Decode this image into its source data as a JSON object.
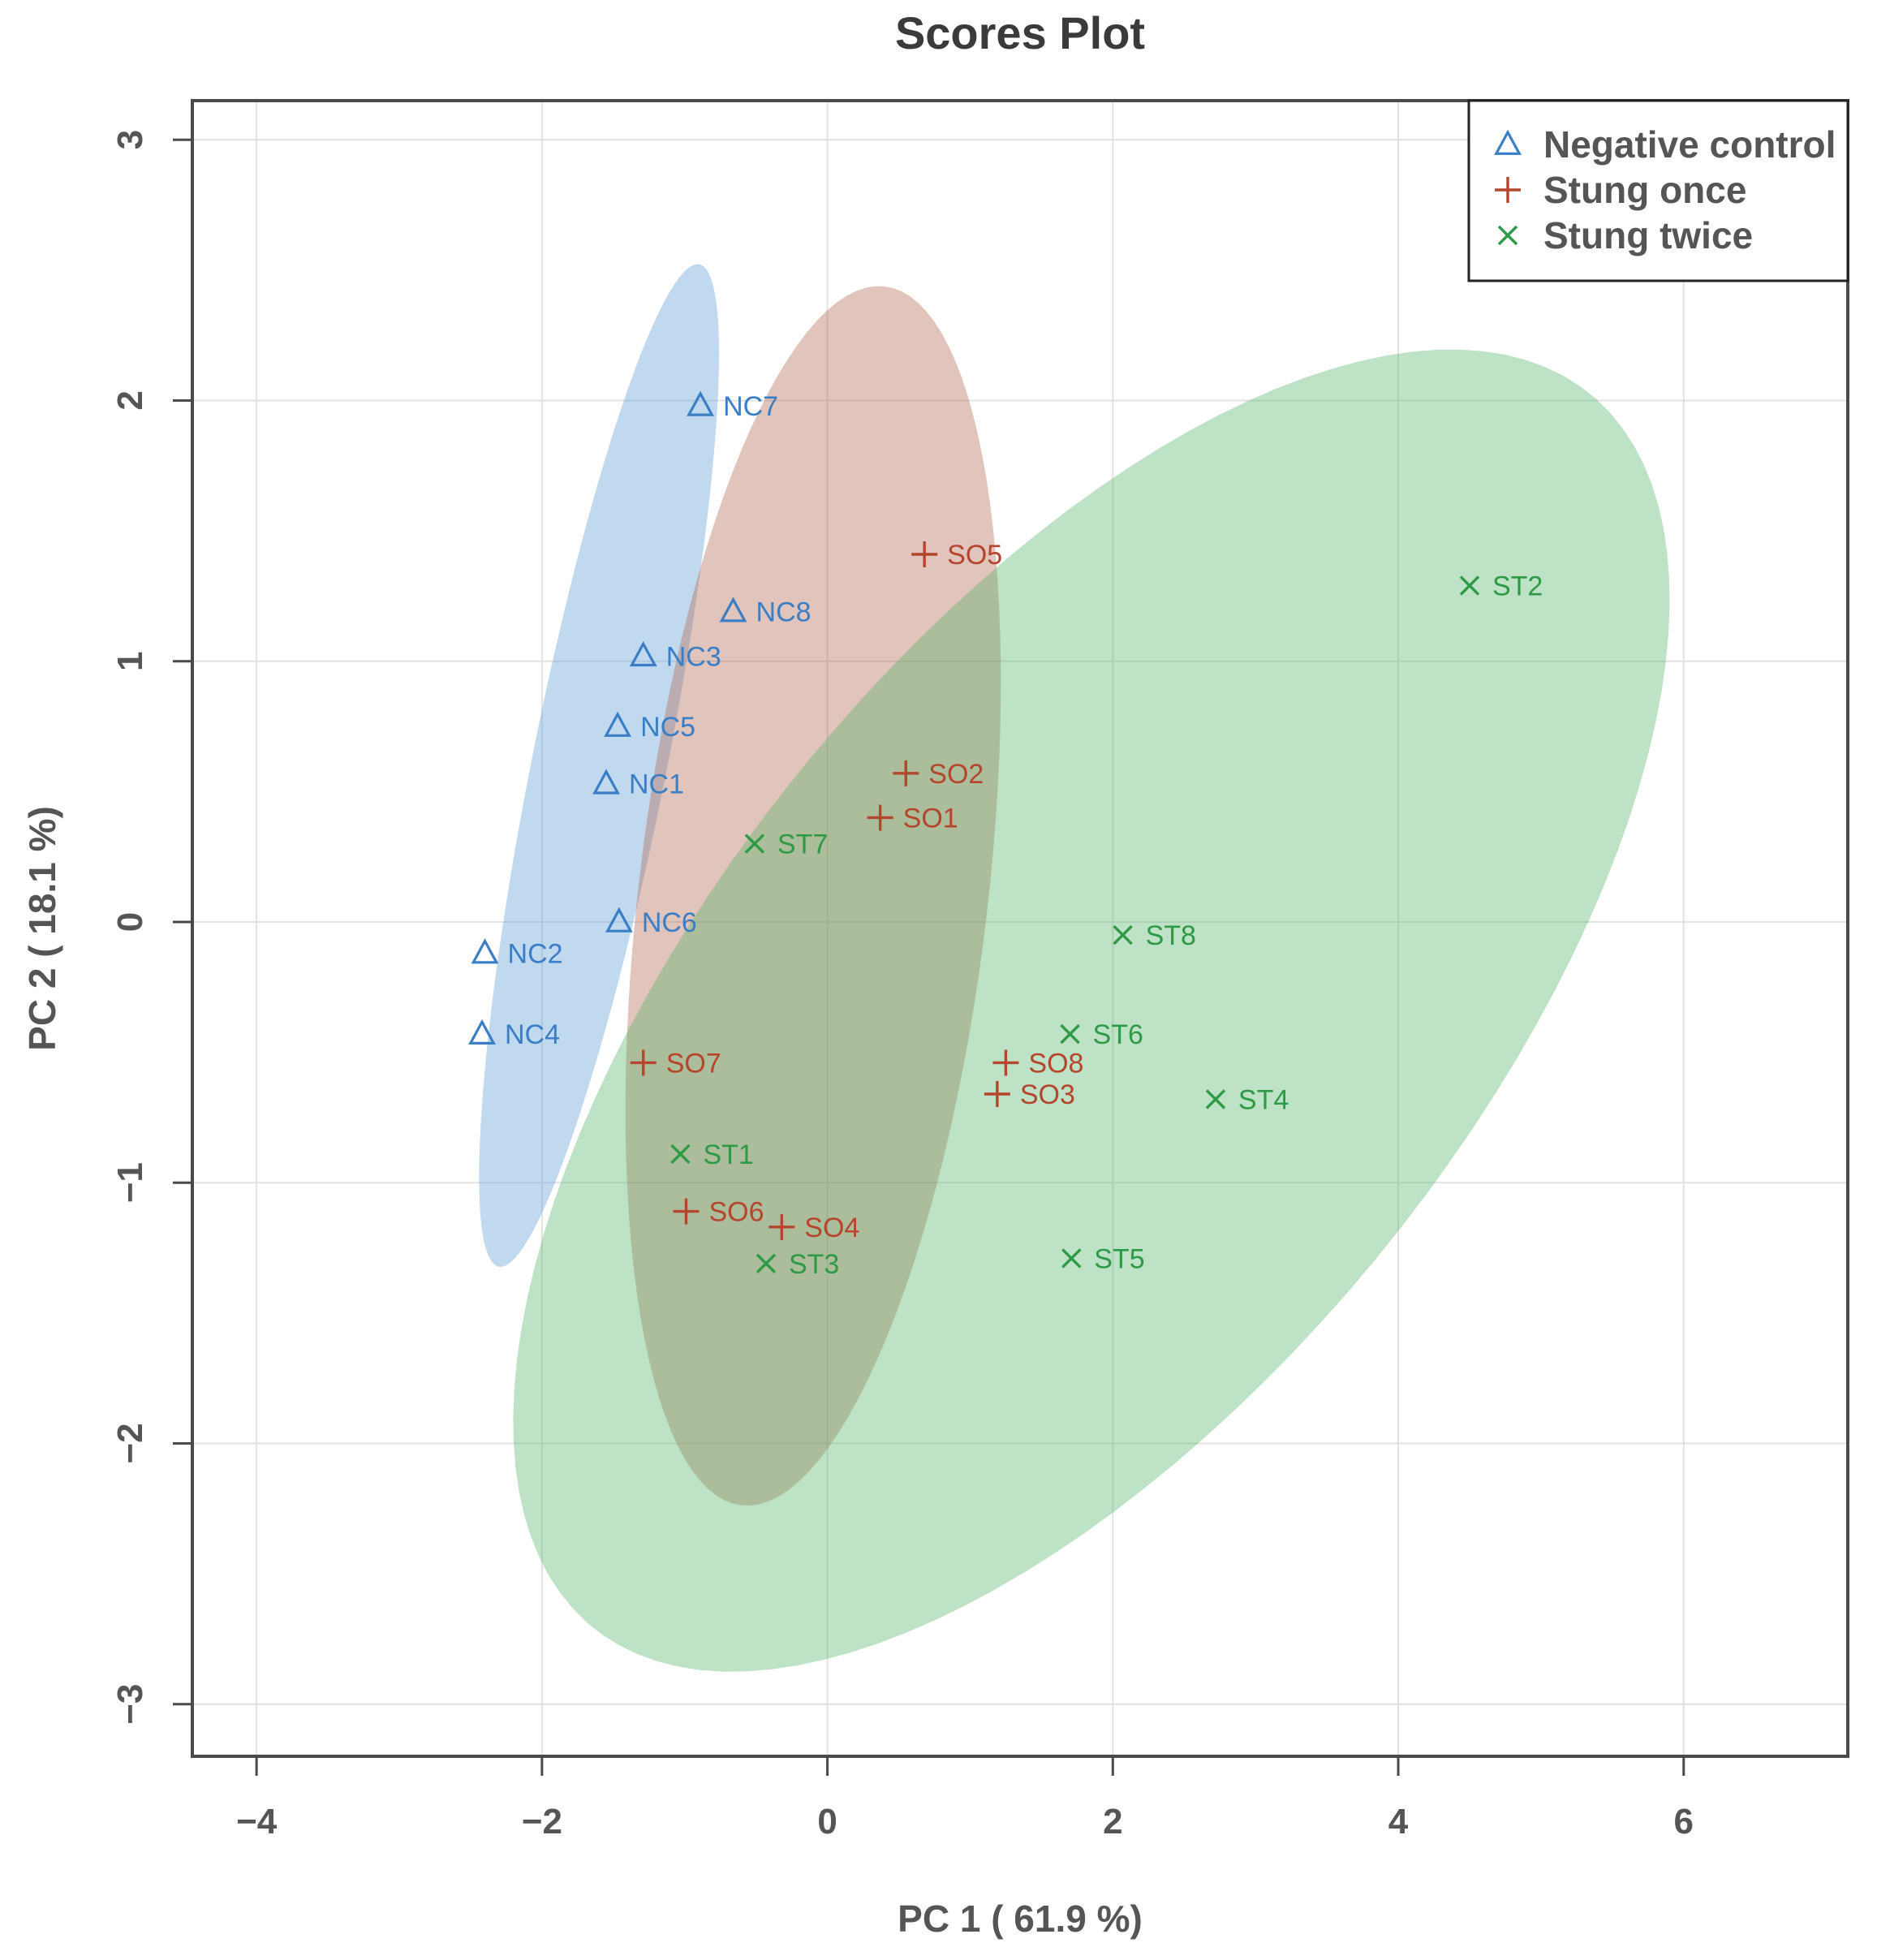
{
  "chart_data": {
    "type": "scatter",
    "title": "Scores Plot",
    "xlabel": "PC 1 ( 61.9 %)",
    "ylabel": "PC 2 ( 18.1 %)",
    "xlim": [
      -4.45,
      7.15
    ],
    "ylim": [
      -3.2,
      3.15
    ],
    "xticks": [
      -4,
      -2,
      0,
      2,
      4,
      6
    ],
    "yticks": [
      -3,
      -2,
      -1,
      0,
      1,
      2,
      3
    ],
    "xtick_labels": [
      "−4",
      "−2",
      "0",
      "2",
      "4",
      "6"
    ],
    "ytick_labels": [
      "−3",
      "−2",
      "−1",
      "0",
      "1",
      "2",
      "3"
    ],
    "grid": true,
    "legend_position": "top-right",
    "series": [
      {
        "name": "Negative control",
        "marker": "triangle",
        "color": "#3a7ec6",
        "fill": "#5b9bd5",
        "ellipse": {
          "cx": -1.6,
          "cy": 0.6,
          "rx": 2.05,
          "ry": 0.45,
          "angle_deg": 69.2
        },
        "points": [
          {
            "label": "NC1",
            "x": -1.55,
            "y": 0.53
          },
          {
            "label": "NC2",
            "x": -2.4,
            "y": -0.12
          },
          {
            "label": "NC3",
            "x": -1.29,
            "y": 1.02
          },
          {
            "label": "NC4",
            "x": -2.42,
            "y": -0.43
          },
          {
            "label": "NC5",
            "x": -1.47,
            "y": 0.75
          },
          {
            "label": "NC6",
            "x": -1.46,
            "y": 0.0
          },
          {
            "label": "NC7",
            "x": -0.89,
            "y": 1.98
          },
          {
            "label": "NC8",
            "x": -0.66,
            "y": 1.19
          }
        ]
      },
      {
        "name": "Stung once",
        "marker": "plus",
        "color": "#b5452c",
        "fill": "#b0634b",
        "ellipse": {
          "cx": -0.1,
          "cy": 0.1,
          "rx": 2.4,
          "ry": 1.2,
          "angle_deg": 75
        },
        "points": [
          {
            "label": "SO1",
            "x": 0.37,
            "y": 0.4
          },
          {
            "label": "SO2",
            "x": 0.55,
            "y": 0.57
          },
          {
            "label": "SO3",
            "x": 1.19,
            "y": -0.66
          },
          {
            "label": "SO4",
            "x": -0.32,
            "y": -1.17
          },
          {
            "label": "SO5",
            "x": 0.68,
            "y": 1.41
          },
          {
            "label": "SO6",
            "x": -0.99,
            "y": -1.11
          },
          {
            "label": "SO7",
            "x": -1.29,
            "y": -0.54
          },
          {
            "label": "SO8",
            "x": 1.25,
            "y": -0.54
          }
        ]
      },
      {
        "name": "Stung twice",
        "marker": "x",
        "color": "#2e9a45",
        "fill": "#55b366",
        "ellipse": {
          "cx": 1.85,
          "cy": -0.34,
          "rx": 4.42,
          "ry": 1.82,
          "angle_deg": 26
        },
        "points": [
          {
            "label": "ST1",
            "x": -1.03,
            "y": -0.89
          },
          {
            "label": "ST2",
            "x": 4.5,
            "y": 1.29
          },
          {
            "label": "ST3",
            "x": -0.43,
            "y": -1.31
          },
          {
            "label": "ST4",
            "x": 2.72,
            "y": -0.68
          },
          {
            "label": "ST5",
            "x": 1.71,
            "y": -1.29
          },
          {
            "label": "ST6",
            "x": 1.7,
            "y": -0.43
          },
          {
            "label": "ST7",
            "x": -0.51,
            "y": 0.3
          },
          {
            "label": "ST8",
            "x": 2.07,
            "y": -0.05
          }
        ]
      }
    ]
  }
}
